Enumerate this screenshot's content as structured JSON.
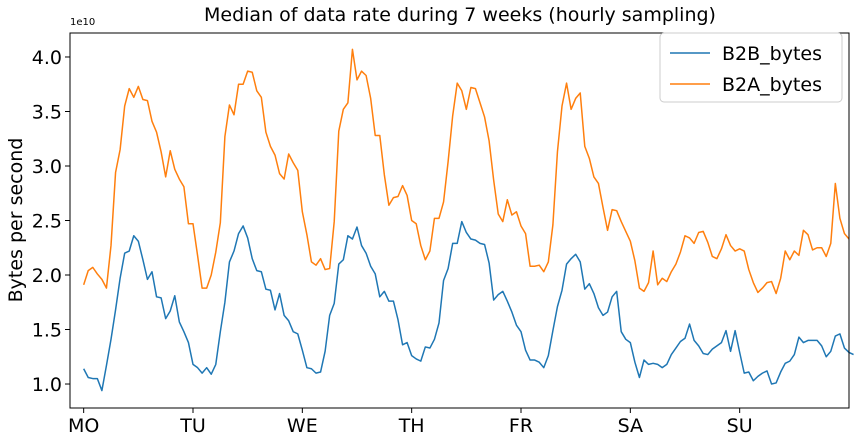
{
  "chart_data": {
    "type": "line",
    "title": "Median of data rate during 7 weeks (hourly sampling)",
    "xlabel": "",
    "ylabel": "Bytes per second",
    "y_offset_label": "1e10",
    "y_scale_factor": 10000000000,
    "ylim": [
      0.78,
      4.22
    ],
    "xlim": [
      -3,
      168
    ],
    "yticks": [
      1.0,
      1.5,
      2.0,
      2.5,
      3.0,
      3.5,
      4.0
    ],
    "ytick_labels": [
      "1.0",
      "1.5",
      "2.0",
      "2.5",
      "3.0",
      "3.5",
      "4.0"
    ],
    "xticks": [
      0,
      24,
      48,
      72,
      96,
      120,
      144
    ],
    "xtick_labels": [
      "MO",
      "TU",
      "WE",
      "TH",
      "FR",
      "SA",
      "SU"
    ],
    "grid": false,
    "legend_position": "top-right",
    "series": [
      {
        "name": "B2B_bytes",
        "color": "#1f77b4",
        "values": [
          1.14,
          1.06,
          1.05,
          1.05,
          0.94,
          1.17,
          1.41,
          1.68,
          1.97,
          2.2,
          2.22,
          2.36,
          2.31,
          2.14,
          1.96,
          2.03,
          1.8,
          1.79,
          1.6,
          1.67,
          1.81,
          1.57,
          1.48,
          1.38,
          1.18,
          1.15,
          1.1,
          1.15,
          1.09,
          1.18,
          1.48,
          1.75,
          2.12,
          2.22,
          2.38,
          2.45,
          2.34,
          2.15,
          2.04,
          2.03,
          1.87,
          1.86,
          1.68,
          1.83,
          1.63,
          1.58,
          1.48,
          1.46,
          1.31,
          1.15,
          1.14,
          1.1,
          1.11,
          1.3,
          1.63,
          1.74,
          2.1,
          2.14,
          2.36,
          2.33,
          2.44,
          2.27,
          2.2,
          2.08,
          2.01,
          1.8,
          1.85,
          1.76,
          1.76,
          1.59,
          1.36,
          1.38,
          1.26,
          1.23,
          1.21,
          1.34,
          1.33,
          1.41,
          1.56,
          1.95,
          2.06,
          2.29,
          2.29,
          2.49,
          2.39,
          2.33,
          2.32,
          2.29,
          2.28,
          2.11,
          1.77,
          1.82,
          1.85,
          1.76,
          1.66,
          1.54,
          1.48,
          1.31,
          1.22,
          1.22,
          1.2,
          1.15,
          1.26,
          1.49,
          1.71,
          1.86,
          2.1,
          2.15,
          2.19,
          2.12,
          1.87,
          1.92,
          1.83,
          1.7,
          1.63,
          1.66,
          1.8,
          1.85,
          1.48,
          1.41,
          1.38,
          1.2,
          1.06,
          1.22,
          1.18,
          1.19,
          1.18,
          1.15,
          1.18,
          1.27,
          1.33,
          1.39,
          1.42,
          1.55,
          1.4,
          1.35,
          1.28,
          1.27,
          1.32,
          1.35,
          1.38,
          1.49,
          1.3,
          1.49,
          1.29,
          1.1,
          1.11,
          1.03,
          1.07,
          1.1,
          1.12,
          1.0,
          1.01,
          1.11,
          1.19,
          1.21,
          1.27,
          1.43,
          1.38,
          1.4,
          1.4,
          1.4,
          1.35,
          1.25,
          1.3,
          1.44,
          1.46,
          1.33,
          1.29,
          1.27
        ]
      },
      {
        "name": "B2A_bytes",
        "color": "#ff7f0e",
        "values": [
          1.91,
          2.04,
          2.07,
          2.01,
          1.96,
          1.88,
          2.27,
          2.94,
          3.15,
          3.55,
          3.71,
          3.63,
          3.73,
          3.61,
          3.6,
          3.41,
          3.31,
          3.13,
          2.9,
          3.14,
          2.97,
          2.88,
          2.81,
          2.47,
          2.47,
          2.18,
          1.88,
          1.88,
          2.0,
          2.21,
          2.48,
          3.27,
          3.56,
          3.47,
          3.75,
          3.75,
          3.87,
          3.86,
          3.69,
          3.63,
          3.31,
          3.18,
          3.1,
          2.93,
          2.88,
          3.11,
          3.03,
          2.96,
          2.58,
          2.37,
          2.12,
          2.09,
          2.15,
          2.05,
          2.06,
          2.49,
          3.32,
          3.52,
          3.58,
          4.07,
          3.79,
          3.87,
          3.83,
          3.62,
          3.28,
          3.28,
          2.92,
          2.64,
          2.71,
          2.72,
          2.82,
          2.73,
          2.5,
          2.47,
          2.27,
          2.14,
          2.22,
          2.52,
          2.52,
          2.67,
          3.04,
          3.46,
          3.76,
          3.69,
          3.52,
          3.72,
          3.71,
          3.58,
          3.45,
          3.23,
          2.87,
          2.56,
          2.49,
          2.69,
          2.55,
          2.58,
          2.45,
          2.38,
          2.08,
          2.08,
          2.09,
          2.03,
          2.12,
          2.46,
          3.13,
          3.55,
          3.76,
          3.52,
          3.62,
          3.67,
          3.18,
          3.07,
          2.9,
          2.84,
          2.62,
          2.41,
          2.6,
          2.59,
          2.49,
          2.4,
          2.31,
          2.13,
          1.88,
          1.85,
          1.93,
          2.22,
          1.91,
          1.97,
          1.94,
          2.03,
          2.1,
          2.21,
          2.36,
          2.34,
          2.29,
          2.39,
          2.4,
          2.3,
          2.17,
          2.15,
          2.24,
          2.37,
          2.27,
          2.22,
          2.24,
          2.22,
          2.05,
          1.93,
          1.84,
          1.88,
          1.93,
          1.94,
          1.83,
          1.97,
          2.22,
          2.14,
          2.22,
          2.18,
          2.41,
          2.37,
          2.23,
          2.25,
          2.25,
          2.17,
          2.29,
          2.84,
          2.52,
          2.38,
          2.33
        ]
      }
    ]
  }
}
